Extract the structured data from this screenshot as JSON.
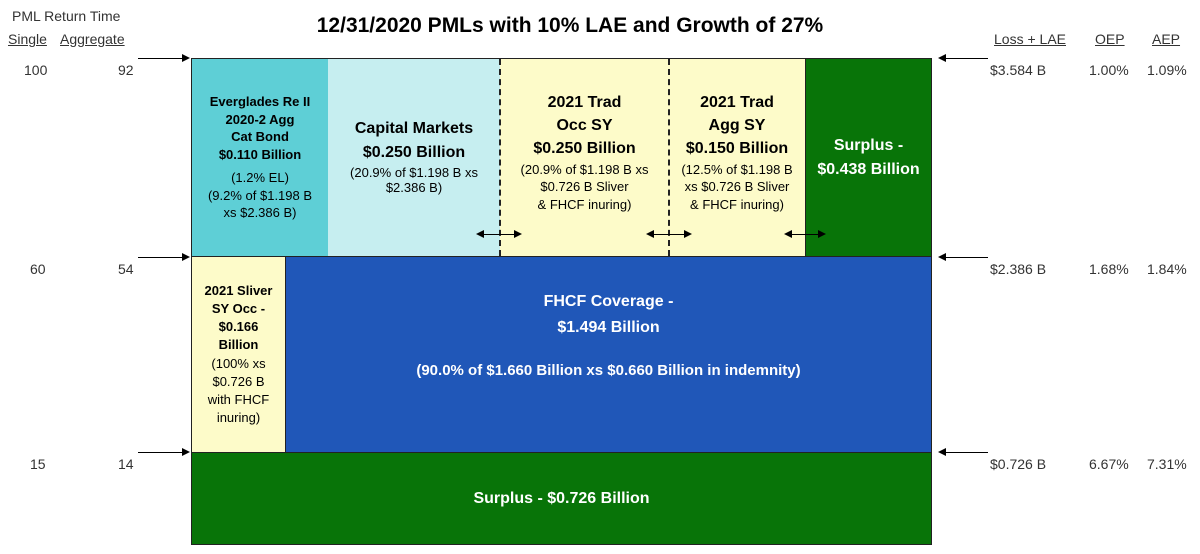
{
  "title": "12/31/2020 PMLs with 10% LAE and Growth of 27%",
  "left_header": {
    "line1": "PML Return Time",
    "single": "Single",
    "aggregate": "Aggregate"
  },
  "right_header": {
    "loss_lae": "Loss + LAE",
    "oep": "OEP",
    "aep": "AEP"
  },
  "rows": [
    {
      "single": "100",
      "aggregate": "92",
      "loss": "$3.584 B",
      "oep": "1.00%",
      "aep": "1.09%"
    },
    {
      "single": "60",
      "aggregate": "54",
      "loss": "$2.386 B",
      "oep": "1.68%",
      "aep": "1.84%"
    },
    {
      "single": "15",
      "aggregate": "14",
      "loss": "$0.726 B",
      "oep": "6.67%",
      "aep": "7.31%"
    }
  ],
  "blocks": {
    "everglades": {
      "name1": "Everglades Re II",
      "name2": "2020-2 Agg",
      "name3": "Cat Bond",
      "amount": "$0.110 Billion",
      "note1": "(1.2% EL)",
      "note2": "(9.2% of $1.198 B",
      "note3": "xs $2.386 B)",
      "color": "#5ecfd6"
    },
    "capital_markets": {
      "name": "Capital Markets",
      "amount": "$0.250 Billion",
      "note1": "(20.9% of $1.198 B xs",
      "note2": "$2.386 B)",
      "color": "#c6eef0"
    },
    "trad_occ": {
      "name1": "2021 Trad",
      "name2": "Occ SY",
      "amount": "$0.250 Billion",
      "note1": "(20.9% of $1.198 B xs",
      "note2": "$0.726 B Sliver",
      "note3": "& FHCF inuring)",
      "color": "#fdfbc9"
    },
    "trad_agg": {
      "name1": "2021 Trad",
      "name2": "Agg SY",
      "amount": "$0.150 Billion",
      "note1": "(12.5% of $1.198 B",
      "note2": "xs $0.726 B Sliver",
      "note3": "& FHCF inuring)",
      "color": "#fdfbc9"
    },
    "surplus_top": {
      "line1": "Surplus -",
      "line2": "$0.438 Billion",
      "color": "#087408"
    },
    "sliver": {
      "line1": "2021 Sliver",
      "line2": "SY Occ -",
      "line3": "$0.166",
      "line4": "Billion",
      "note1": "(100% xs",
      "note2": "$0.726 B",
      "note3": "with FHCF",
      "note4": "inuring)",
      "color": "#fdfbc9"
    },
    "fhcf": {
      "line1": "FHCF Coverage  -",
      "line2": "$1.494 Billion",
      "note": "(90.0% of $1.660 Billion xs $0.660 Billion in indemnity)",
      "color": "#2057b8"
    },
    "surplus_bottom": {
      "line": "Surplus - $0.726 Billion",
      "color": "#087408"
    }
  }
}
